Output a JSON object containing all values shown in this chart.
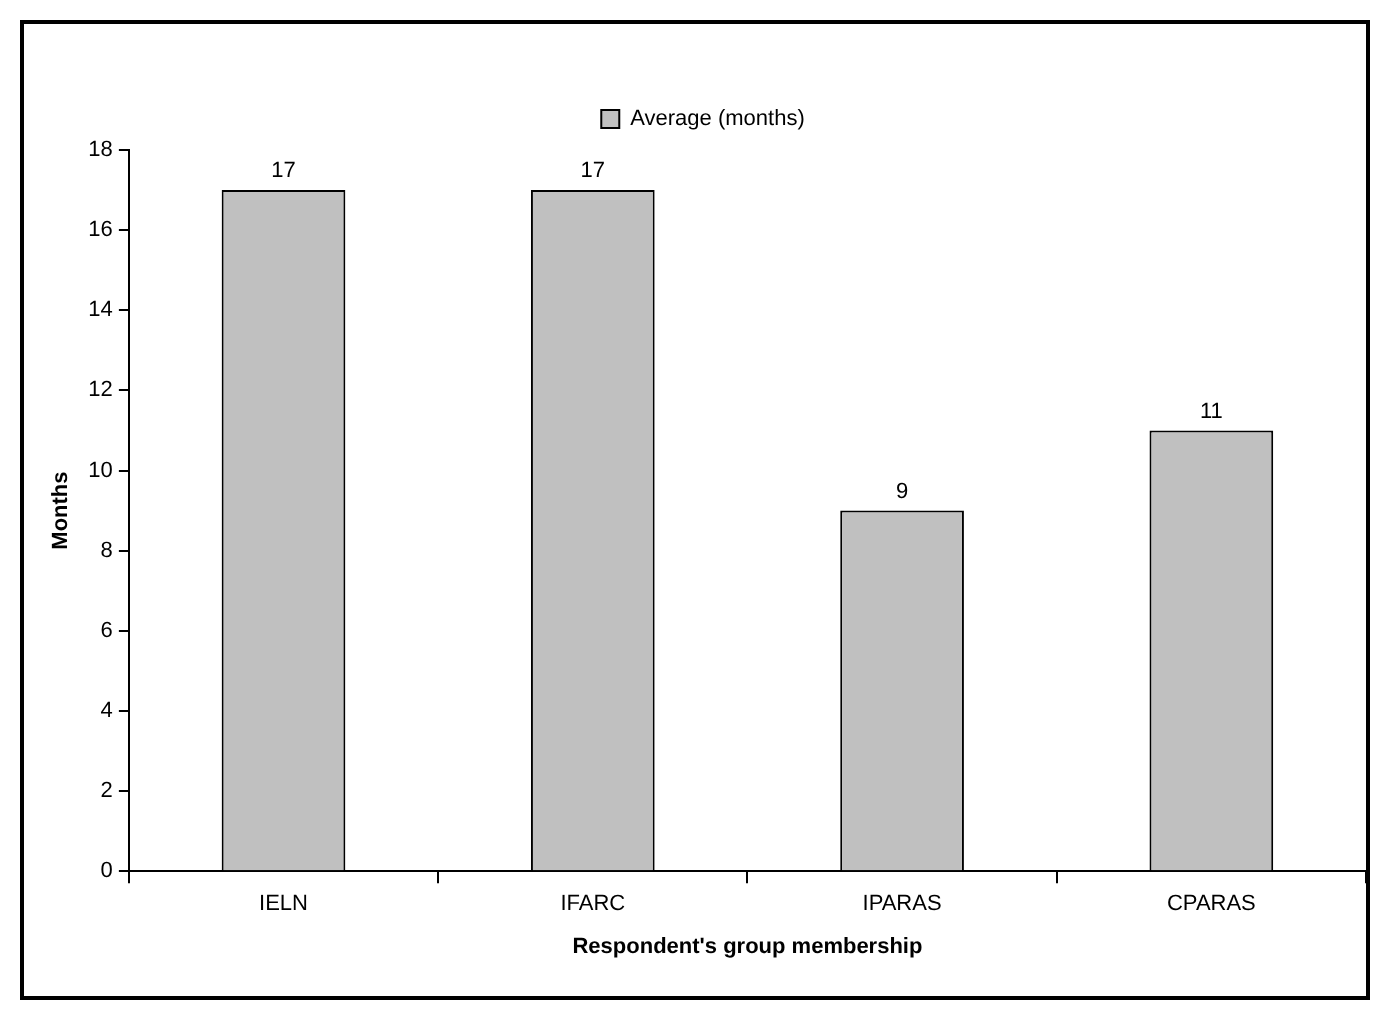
{
  "chart_data": {
    "type": "bar",
    "xlabel": "Respondent's group membership",
    "ylabel": "Months",
    "categories": [
      "IELN",
      "IFARC",
      "IPARAS",
      "CPARAS"
    ],
    "series": [
      {
        "name": "Average (months)",
        "color": "#c0c0c0",
        "values": [
          17,
          17,
          9,
          11
        ]
      }
    ],
    "ylim": [
      0,
      18
    ],
    "yticks": [
      0,
      2,
      4,
      6,
      8,
      10,
      12,
      14,
      16,
      18
    ],
    "grid": false,
    "legend": "top",
    "data_labels": true
  }
}
